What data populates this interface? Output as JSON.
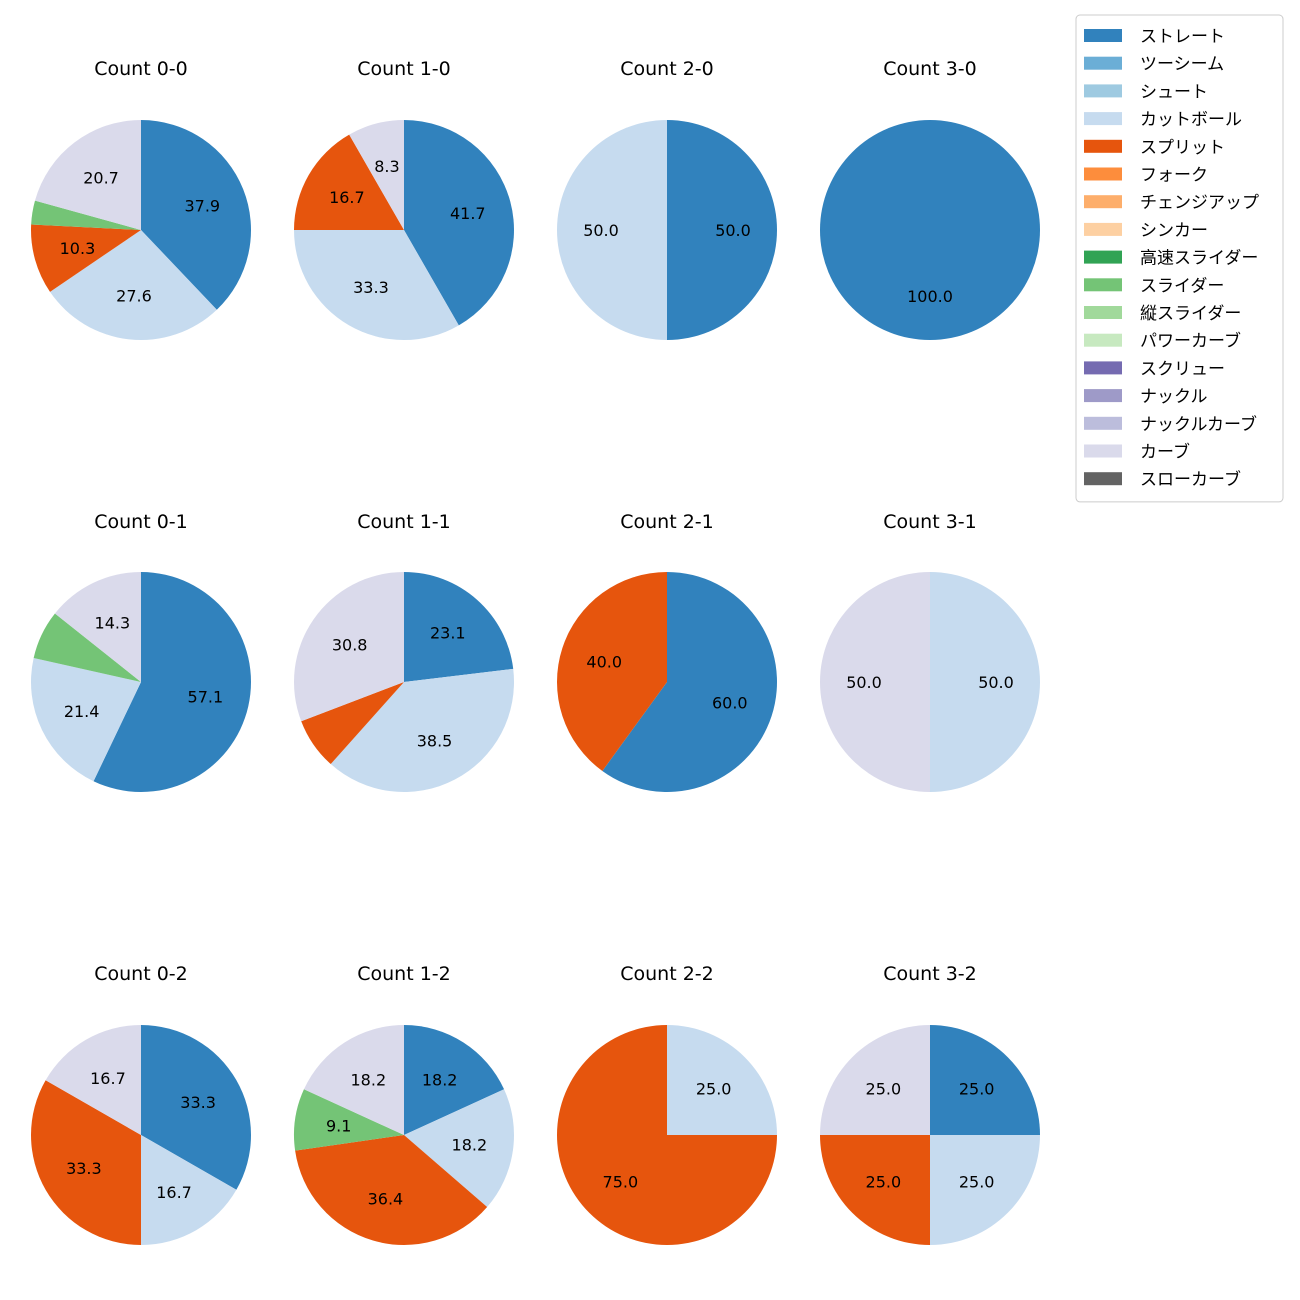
{
  "chart_data": {
    "type": "pie",
    "pitch_types": [
      {
        "name": "ストレート",
        "color": "#3182bd"
      },
      {
        "name": "ツーシーム",
        "color": "#6baed6"
      },
      {
        "name": "シュート",
        "color": "#9ecae1"
      },
      {
        "name": "カットボール",
        "color": "#c6dbef"
      },
      {
        "name": "スプリット",
        "color": "#e6550d"
      },
      {
        "name": "フォーク",
        "color": "#fd8d3c"
      },
      {
        "name": "チェンジアップ",
        "color": "#fdae6b"
      },
      {
        "name": "シンカー",
        "color": "#fdd0a2"
      },
      {
        "name": "高速スライダー",
        "color": "#31a354"
      },
      {
        "name": "スライダー",
        "color": "#74c476"
      },
      {
        "name": "縦スライダー",
        "color": "#a1d99b"
      },
      {
        "name": "パワーカーブ",
        "color": "#c7e9c0"
      },
      {
        "name": "スクリュー",
        "color": "#756bb1"
      },
      {
        "name": "ナックル",
        "color": "#9e9ac8"
      },
      {
        "name": "ナックルカーブ",
        "color": "#bcbddc"
      },
      {
        "name": "カーブ",
        "color": "#dadaeb"
      },
      {
        "name": "スローカーブ",
        "color": "#636363"
      }
    ],
    "charts": [
      {
        "title": "Count 0-0",
        "slices": [
          {
            "type": "ストレート",
            "value": 37.9,
            "label": "37.9"
          },
          {
            "type": "カットボール",
            "value": 27.6,
            "label": "27.6"
          },
          {
            "type": "スプリット",
            "value": 10.3,
            "label": "10.3"
          },
          {
            "type": "スライダー",
            "value": 3.5,
            "label": ""
          },
          {
            "type": "カーブ",
            "value": 20.7,
            "label": "20.7"
          }
        ]
      },
      {
        "title": "Count 1-0",
        "slices": [
          {
            "type": "ストレート",
            "value": 41.7,
            "label": "41.7"
          },
          {
            "type": "カットボール",
            "value": 33.3,
            "label": "33.3"
          },
          {
            "type": "スプリット",
            "value": 16.7,
            "label": "16.7"
          },
          {
            "type": "カーブ",
            "value": 8.3,
            "label": "8.3"
          }
        ]
      },
      {
        "title": "Count 2-0",
        "slices": [
          {
            "type": "ストレート",
            "value": 50.0,
            "label": "50.0"
          },
          {
            "type": "カットボール",
            "value": 50.0,
            "label": "50.0"
          }
        ]
      },
      {
        "title": "Count 3-0",
        "slices": [
          {
            "type": "ストレート",
            "value": 100.0,
            "label": "100.0"
          }
        ]
      },
      {
        "title": "Count 0-1",
        "slices": [
          {
            "type": "ストレート",
            "value": 57.1,
            "label": "57.1"
          },
          {
            "type": "カットボール",
            "value": 21.4,
            "label": "21.4"
          },
          {
            "type": "スライダー",
            "value": 7.2,
            "label": ""
          },
          {
            "type": "カーブ",
            "value": 14.3,
            "label": "14.3"
          }
        ]
      },
      {
        "title": "Count 1-1",
        "slices": [
          {
            "type": "ストレート",
            "value": 23.1,
            "label": "23.1"
          },
          {
            "type": "カットボール",
            "value": 38.5,
            "label": "38.5"
          },
          {
            "type": "スプリット",
            "value": 7.6,
            "label": ""
          },
          {
            "type": "カーブ",
            "value": 30.8,
            "label": "30.8"
          }
        ]
      },
      {
        "title": "Count 2-1",
        "slices": [
          {
            "type": "ストレート",
            "value": 60.0,
            "label": "60.0"
          },
          {
            "type": "スプリット",
            "value": 40.0,
            "label": "40.0"
          }
        ]
      },
      {
        "title": "Count 3-1",
        "slices": [
          {
            "type": "カットボール",
            "value": 50.0,
            "label": "50.0"
          },
          {
            "type": "カーブ",
            "value": 50.0,
            "label": "50.0"
          }
        ]
      },
      {
        "title": "Count 0-2",
        "slices": [
          {
            "type": "ストレート",
            "value": 33.3,
            "label": "33.3"
          },
          {
            "type": "カットボール",
            "value": 16.7,
            "label": "16.7"
          },
          {
            "type": "スプリット",
            "value": 33.3,
            "label": "33.3"
          },
          {
            "type": "カーブ",
            "value": 16.7,
            "label": "16.7"
          }
        ]
      },
      {
        "title": "Count 1-2",
        "slices": [
          {
            "type": "ストレート",
            "value": 18.2,
            "label": "18.2"
          },
          {
            "type": "カットボール",
            "value": 18.2,
            "label": "18.2"
          },
          {
            "type": "スプリット",
            "value": 36.4,
            "label": "36.4"
          },
          {
            "type": "スライダー",
            "value": 9.1,
            "label": "9.1"
          },
          {
            "type": "カーブ",
            "value": 18.2,
            "label": "18.2"
          }
        ]
      },
      {
        "title": "Count 2-2",
        "slices": [
          {
            "type": "カットボール",
            "value": 25.0,
            "label": "25.0"
          },
          {
            "type": "スプリット",
            "value": 75.0,
            "label": "75.0"
          }
        ]
      },
      {
        "title": "Count 3-2",
        "slices": [
          {
            "type": "ストレート",
            "value": 25.0,
            "label": "25.0"
          },
          {
            "type": "カットボール",
            "value": 25.0,
            "label": "25.0"
          },
          {
            "type": "スプリット",
            "value": 25.0,
            "label": "25.0"
          },
          {
            "type": "カーブ",
            "value": 25.0,
            "label": "25.0"
          }
        ]
      }
    ],
    "legend_placement": "top-right"
  }
}
